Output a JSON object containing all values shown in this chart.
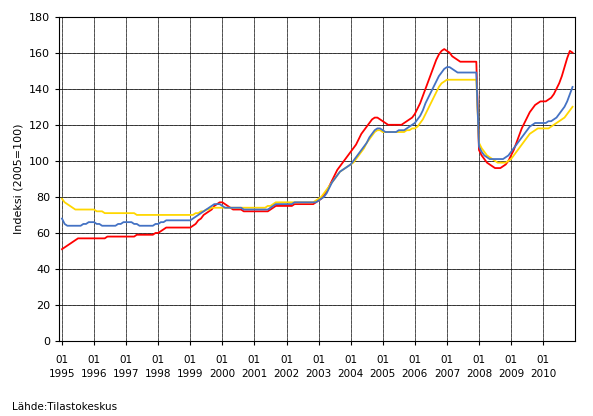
{
  "ylabel": "Indeksi (2005=100)",
  "source": "Lähde:Tilastokeskus",
  "ylim": [
    0,
    180
  ],
  "yticks": [
    0,
    20,
    40,
    60,
    80,
    100,
    120,
    140,
    160,
    180
  ],
  "line_colors": {
    "koko": "#4472C4",
    "kotimaa": "#FFD700",
    "vienti": "#FF0000"
  },
  "koko_liikevaihto": [
    68,
    65,
    64,
    64,
    64,
    64,
    64,
    64,
    65,
    65,
    66,
    66,
    66,
    65,
    65,
    64,
    64,
    64,
    64,
    64,
    64,
    65,
    65,
    66,
    66,
    66,
    66,
    65,
    65,
    64,
    64,
    64,
    64,
    64,
    64,
    65,
    65,
    66,
    66,
    67,
    67,
    67,
    67,
    67,
    67,
    67,
    67,
    67,
    67,
    68,
    69,
    70,
    71,
    72,
    73,
    74,
    75,
    76,
    76,
    76,
    75,
    74,
    74,
    74,
    74,
    74,
    74,
    74,
    73,
    73,
    73,
    73,
    73,
    73,
    73,
    73,
    73,
    73,
    74,
    75,
    76,
    76,
    76,
    76,
    76,
    76,
    76,
    77,
    77,
    77,
    77,
    77,
    77,
    77,
    77,
    77,
    78,
    79,
    80,
    82,
    85,
    88,
    90,
    92,
    94,
    95,
    96,
    97,
    98,
    100,
    102,
    104,
    106,
    108,
    110,
    113,
    115,
    117,
    118,
    118,
    117,
    116,
    116,
    116,
    116,
    116,
    117,
    117,
    117,
    118,
    119,
    120,
    121,
    123,
    125,
    128,
    132,
    135,
    138,
    141,
    144,
    147,
    149,
    151,
    152,
    152,
    151,
    150,
    149,
    149,
    149,
    149,
    149,
    149,
    149,
    149,
    108,
    105,
    103,
    102,
    101,
    101,
    101,
    101,
    101,
    101,
    102,
    103,
    105,
    107,
    109,
    111,
    113,
    115,
    117,
    119,
    120,
    121,
    121,
    121,
    121,
    121,
    122,
    122,
    123,
    124,
    126,
    128,
    130,
    133,
    137,
    141
  ],
  "kotimaan_liikevaihto": [
    79,
    77,
    76,
    75,
    74,
    73,
    73,
    73,
    73,
    73,
    73,
    73,
    73,
    72,
    72,
    72,
    71,
    71,
    71,
    71,
    71,
    71,
    71,
    71,
    71,
    71,
    71,
    71,
    70,
    70,
    70,
    70,
    70,
    70,
    70,
    70,
    70,
    70,
    70,
    70,
    70,
    70,
    70,
    70,
    70,
    70,
    70,
    70,
    70,
    70,
    71,
    71,
    72,
    72,
    73,
    73,
    74,
    74,
    74,
    74,
    74,
    74,
    74,
    74,
    74,
    74,
    74,
    74,
    74,
    74,
    74,
    74,
    74,
    74,
    74,
    74,
    74,
    75,
    75,
    76,
    77,
    77,
    77,
    77,
    77,
    77,
    77,
    77,
    77,
    77,
    77,
    77,
    77,
    77,
    77,
    78,
    79,
    80,
    82,
    84,
    86,
    88,
    90,
    92,
    94,
    95,
    96,
    97,
    98,
    99,
    101,
    103,
    105,
    107,
    110,
    112,
    114,
    116,
    117,
    117,
    116,
    116,
    116,
    116,
    116,
    116,
    116,
    116,
    116,
    117,
    117,
    118,
    118,
    119,
    121,
    123,
    126,
    129,
    132,
    135,
    138,
    141,
    143,
    144,
    145,
    145,
    145,
    145,
    145,
    145,
    145,
    145,
    145,
    145,
    145,
    145,
    110,
    107,
    105,
    103,
    102,
    101,
    100,
    99,
    99,
    99,
    99,
    100,
    101,
    103,
    105,
    107,
    109,
    111,
    113,
    115,
    116,
    117,
    118,
    118,
    118,
    118,
    118,
    119,
    120,
    121,
    122,
    123,
    124,
    126,
    128,
    130
  ],
  "vienti_liikevaihto": [
    51,
    52,
    53,
    54,
    55,
    56,
    57,
    57,
    57,
    57,
    57,
    57,
    57,
    57,
    57,
    57,
    57,
    58,
    58,
    58,
    58,
    58,
    58,
    58,
    58,
    58,
    58,
    58,
    59,
    59,
    59,
    59,
    59,
    59,
    59,
    60,
    60,
    61,
    62,
    63,
    63,
    63,
    63,
    63,
    63,
    63,
    63,
    63,
    63,
    64,
    65,
    67,
    68,
    70,
    71,
    72,
    73,
    75,
    76,
    77,
    77,
    76,
    75,
    74,
    73,
    73,
    73,
    73,
    72,
    72,
    72,
    72,
    72,
    72,
    72,
    72,
    72,
    72,
    73,
    74,
    75,
    75,
    75,
    75,
    75,
    75,
    75,
    76,
    76,
    76,
    76,
    76,
    76,
    76,
    76,
    77,
    78,
    79,
    81,
    83,
    86,
    89,
    92,
    95,
    97,
    99,
    101,
    103,
    105,
    107,
    109,
    112,
    115,
    117,
    119,
    121,
    123,
    124,
    124,
    123,
    122,
    121,
    120,
    120,
    120,
    120,
    120,
    120,
    121,
    122,
    123,
    124,
    126,
    129,
    132,
    136,
    140,
    144,
    148,
    152,
    156,
    159,
    161,
    162,
    161,
    160,
    158,
    157,
    156,
    155,
    155,
    155,
    155,
    155,
    155,
    155,
    106,
    103,
    101,
    99,
    98,
    97,
    96,
    96,
    96,
    97,
    98,
    100,
    103,
    106,
    110,
    114,
    118,
    121,
    124,
    127,
    129,
    131,
    132,
    133,
    133,
    133,
    134,
    135,
    137,
    140,
    143,
    147,
    152,
    157,
    161,
    160
  ],
  "xtick_years": [
    1995,
    1996,
    1997,
    1998,
    1999,
    2000,
    2001,
    2002,
    2003,
    2004,
    2005,
    2006,
    2007,
    2008,
    2009,
    2010
  ]
}
